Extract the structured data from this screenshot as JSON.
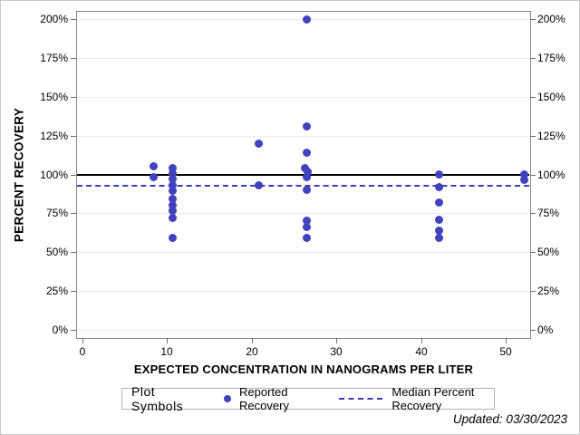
{
  "chart_data": {
    "type": "scatter",
    "xlabel": "EXPECTED CONCENTRATION IN NANOGRAMS PER LITER",
    "ylabel": "PERCENT RECOVERY",
    "x_ticks": [
      0,
      10,
      20,
      30,
      40,
      50
    ],
    "x_tick_labels": [
      "0",
      "10",
      "20",
      "30",
      "40",
      "50"
    ],
    "y_ticks": [
      0,
      25,
      50,
      75,
      100,
      125,
      150,
      175,
      200
    ],
    "y_tick_labels": [
      "0%",
      "25%",
      "50%",
      "75%",
      "100%",
      "125%",
      "150%",
      "175%",
      "200%"
    ],
    "xlim": [
      -0.75,
      53
    ],
    "ylim": [
      -6,
      205
    ],
    "grid": true,
    "legend_position": "bottom",
    "series": [
      {
        "name": "Reported Recovery",
        "color": "#4242be",
        "points": [
          [
            8.4,
            105
          ],
          [
            8.4,
            98
          ],
          [
            10.6,
            104
          ],
          [
            10.6,
            100.5
          ],
          [
            10.6,
            97
          ],
          [
            10.6,
            93
          ],
          [
            10.6,
            89.5
          ],
          [
            10.6,
            84
          ],
          [
            10.6,
            80
          ],
          [
            10.6,
            76.5
          ],
          [
            10.6,
            72
          ],
          [
            10.6,
            59
          ],
          [
            20.8,
            120
          ],
          [
            20.8,
            93
          ],
          [
            26.5,
            200
          ],
          [
            26.5,
            131
          ],
          [
            26.5,
            114
          ],
          [
            26.3,
            104
          ],
          [
            26.6,
            101.5
          ],
          [
            26.5,
            98
          ],
          [
            26.5,
            90
          ],
          [
            26.5,
            70
          ],
          [
            26.5,
            66
          ],
          [
            26.5,
            59
          ],
          [
            42.1,
            100
          ],
          [
            42.1,
            92
          ],
          [
            42.1,
            82
          ],
          [
            42.1,
            71
          ],
          [
            42.1,
            64
          ],
          [
            42.1,
            59
          ],
          [
            52.2,
            100
          ],
          [
            52.2,
            96.5
          ]
        ]
      }
    ],
    "reference_lines": [
      {
        "value": 100,
        "style": "solid",
        "color": "#000000"
      },
      {
        "value": 93,
        "style": "dashed",
        "color": "#3c3cc4"
      }
    ]
  },
  "legend": {
    "title": "Plot Symbols",
    "items": [
      {
        "symbol": "dot",
        "label": "Reported Recovery"
      },
      {
        "symbol": "dashed-line",
        "label": "Median Percent Recovery"
      }
    ]
  },
  "footer": {
    "updated": "Updated: 03/30/2023"
  },
  "colors": {
    "marker": "#4242be",
    "median_line": "#3c3cc4",
    "reference_line": "#000000"
  }
}
